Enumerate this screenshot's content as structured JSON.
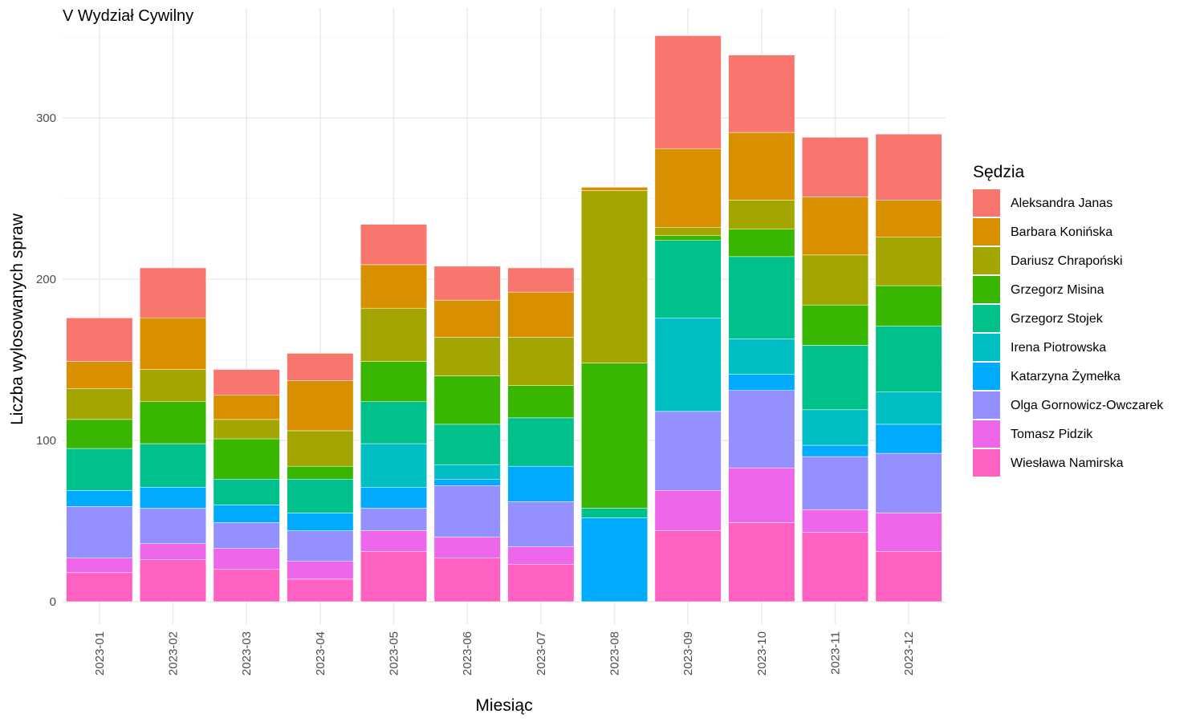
{
  "chart_data": {
    "type": "bar",
    "stacked": true,
    "title": "V Wydział Cywilny",
    "xlabel": "Miesiąc",
    "ylabel": "Liczba wylosowanych spraw",
    "ylim": [
      0,
      360
    ],
    "yticks": [
      0,
      100,
      200,
      300
    ],
    "grid": true,
    "legend": {
      "title": "Sędzia",
      "position": "right"
    },
    "categories": [
      "2023-01",
      "2023-02",
      "2023-03",
      "2023-04",
      "2023-05",
      "2023-06",
      "2023-07",
      "2023-08",
      "2023-09",
      "2023-10",
      "2023-11",
      "2023-12"
    ],
    "series": [
      {
        "name": "Wiesława Namirska",
        "color": "#FF61C3",
        "values": [
          18,
          26,
          20,
          14,
          31,
          27,
          23,
          0,
          44,
          49,
          43,
          31
        ]
      },
      {
        "name": "Tomasz Pidzik",
        "color": "#EE67EB",
        "values": [
          9,
          10,
          13,
          11,
          13,
          13,
          11,
          0,
          25,
          34,
          14,
          24
        ]
      },
      {
        "name": "Olga Gornowicz-Owczarek",
        "color": "#9590FF",
        "values": [
          32,
          22,
          16,
          19,
          14,
          32,
          28,
          0,
          49,
          48,
          33,
          37
        ]
      },
      {
        "name": "Katarzyna Żymełka",
        "color": "#00ABFD",
        "values": [
          10,
          13,
          11,
          11,
          13,
          4,
          22,
          52,
          0,
          10,
          7,
          18
        ]
      },
      {
        "name": "Irena Piotrowska",
        "color": "#00BFC4",
        "values": [
          0,
          0,
          0,
          0,
          27,
          9,
          0,
          0,
          58,
          22,
          22,
          20
        ]
      },
      {
        "name": "Grzegorz Stojek",
        "color": "#00C08B",
        "values": [
          26,
          27,
          16,
          21,
          26,
          25,
          30,
          6,
          48,
          51,
          40,
          41
        ]
      },
      {
        "name": "Grzegorz Misina",
        "color": "#39B600",
        "values": [
          18,
          26,
          25,
          8,
          25,
          30,
          20,
          90,
          3,
          17,
          25,
          25
        ]
      },
      {
        "name": "Dariusz Chrapoński",
        "color": "#A3A500",
        "values": [
          19,
          20,
          12,
          22,
          33,
          24,
          30,
          107,
          5,
          18,
          31,
          30
        ]
      },
      {
        "name": "Barbara Konińska",
        "color": "#D89000",
        "values": [
          17,
          32,
          15,
          31,
          27,
          23,
          28,
          2,
          49,
          42,
          36,
          23
        ]
      },
      {
        "name": "Aleksandra Janas",
        "color": "#F8766D",
        "values": [
          27,
          31,
          16,
          17,
          25,
          21,
          15,
          0,
          70,
          48,
          37,
          41
        ]
      }
    ]
  }
}
